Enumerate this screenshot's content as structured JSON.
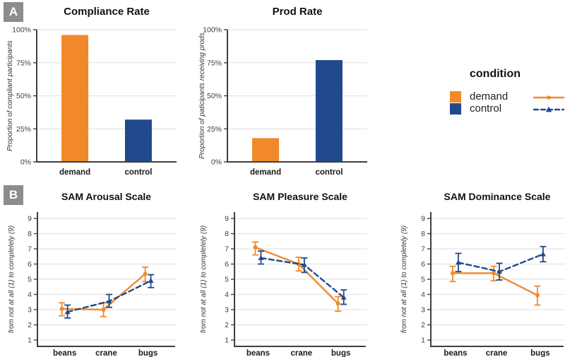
{
  "panels": {
    "a_label": "A",
    "b_label": "B"
  },
  "legend": {
    "title": "condition",
    "items": [
      {
        "label": "demand",
        "color": "#F1892B",
        "line_style": "solid",
        "marker": "circle"
      },
      {
        "label": "control",
        "color": "#21498C",
        "line_style": "dashed",
        "marker": "triangle"
      }
    ]
  },
  "colors": {
    "demand": "#F1892B",
    "control": "#21498C",
    "grid": "#E5E5E5",
    "axis": "#3F3F3F",
    "panel_label_bg": "#8C8C8C"
  },
  "chart_data": [
    {
      "id": "compliance-rate",
      "type": "bar",
      "title": "Compliance Rate",
      "ylabel": "Proportion of compliant participants",
      "categories": [
        "demand",
        "control"
      ],
      "values": [
        96,
        32
      ],
      "bar_colors": [
        "#F1892B",
        "#21498C"
      ],
      "ylim": [
        0,
        100
      ],
      "yticks": [
        0,
        25,
        50,
        75,
        100
      ],
      "ytick_labels": [
        "0%",
        "25%",
        "50%",
        "75%",
        "100%"
      ],
      "grid": true
    },
    {
      "id": "prod-rate",
      "type": "bar",
      "title": "Prod Rate",
      "ylabel": "Proportion of paticipants receiving prods",
      "categories": [
        "demand",
        "control"
      ],
      "values": [
        18,
        77
      ],
      "bar_colors": [
        "#F1892B",
        "#21498C"
      ],
      "ylim": [
        0,
        100
      ],
      "yticks": [
        0,
        25,
        50,
        75,
        100
      ],
      "ytick_labels": [
        "0%",
        "25%",
        "50%",
        "75%",
        "100%"
      ],
      "grid": true
    },
    {
      "id": "sam-arousal",
      "type": "line",
      "title": "SAM Arousal Scale",
      "ylabel": "from not at all (1) to completely (9)",
      "categories": [
        "beans",
        "crane",
        "bugs"
      ],
      "ylim": [
        1,
        9
      ],
      "yticks": [
        1,
        2,
        3,
        4,
        5,
        6,
        7,
        8,
        9
      ],
      "grid": true,
      "series": [
        {
          "name": "demand",
          "color": "#F1892B",
          "dashed": false,
          "marker": "circle",
          "values": [
            3.05,
            3.0,
            5.35
          ],
          "err_low": [
            2.6,
            2.55,
            4.85
          ],
          "err_high": [
            3.45,
            3.45,
            5.8
          ]
        },
        {
          "name": "control",
          "color": "#21498C",
          "dashed": true,
          "marker": "triangle",
          "values": [
            2.85,
            3.55,
            4.9
          ],
          "err_low": [
            2.45,
            3.15,
            4.45
          ],
          "err_high": [
            3.3,
            4.0,
            5.3
          ]
        }
      ]
    },
    {
      "id": "sam-pleasure",
      "type": "line",
      "title": "SAM Pleasure Scale",
      "ylabel": "from not at all (1) to completely (9)",
      "categories": [
        "beans",
        "crane",
        "bugs"
      ],
      "ylim": [
        1,
        9
      ],
      "yticks": [
        1,
        2,
        3,
        4,
        5,
        6,
        7,
        8,
        9
      ],
      "grid": true,
      "series": [
        {
          "name": "demand",
          "color": "#F1892B",
          "dashed": false,
          "marker": "circle",
          "values": [
            7.1,
            6.0,
            3.4
          ],
          "err_low": [
            6.6,
            5.55,
            2.9
          ],
          "err_high": [
            7.45,
            6.45,
            3.85
          ]
        },
        {
          "name": "control",
          "color": "#21498C",
          "dashed": true,
          "marker": "triangle",
          "values": [
            6.4,
            5.95,
            3.8
          ],
          "err_low": [
            6.0,
            5.45,
            3.35
          ],
          "err_high": [
            6.85,
            6.4,
            4.3
          ]
        }
      ]
    },
    {
      "id": "sam-dominance",
      "type": "line",
      "title": "SAM Dominance Scale",
      "ylabel": "from not at all (1) to completely (9)",
      "categories": [
        "beans",
        "crane",
        "bugs"
      ],
      "ylim": [
        1,
        9
      ],
      "yticks": [
        1,
        2,
        3,
        4,
        5,
        6,
        7,
        8,
        9
      ],
      "grid": true,
      "series": [
        {
          "name": "demand",
          "color": "#F1892B",
          "dashed": false,
          "marker": "circle",
          "values": [
            5.4,
            5.4,
            3.95
          ],
          "err_low": [
            4.85,
            4.9,
            3.3
          ],
          "err_high": [
            5.85,
            5.85,
            4.55
          ]
        },
        {
          "name": "control",
          "color": "#21498C",
          "dashed": true,
          "marker": "triangle",
          "values": [
            6.1,
            5.5,
            6.65
          ],
          "err_low": [
            5.5,
            4.95,
            6.15
          ],
          "err_high": [
            6.7,
            6.05,
            7.15
          ]
        }
      ]
    }
  ]
}
